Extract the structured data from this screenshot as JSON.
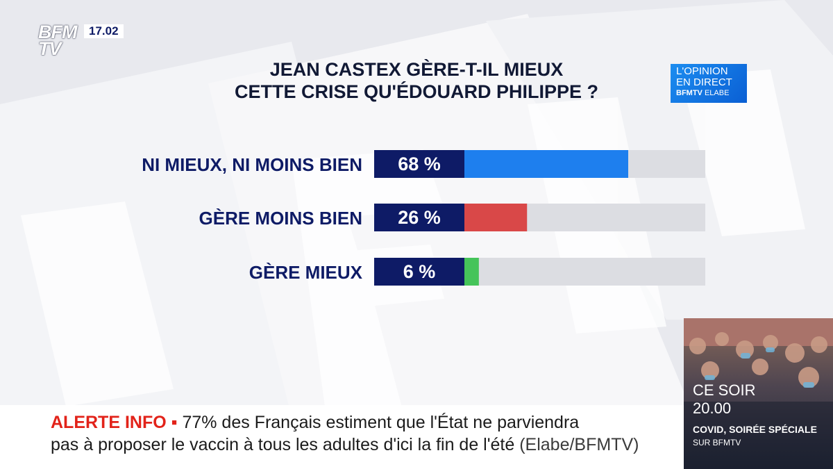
{
  "header": {
    "logo_top": "BFM",
    "logo_bottom": "TV",
    "clock": "17.02"
  },
  "title_lines": [
    "JEAN CASTEX GÈRE-T-IL MIEUX",
    "CETTE CRISE QU'ÉDOUARD PHILIPPE ?"
  ],
  "opinion_box": {
    "line1": "L'OPINION",
    "line2": "EN DIRECT",
    "brand": "BFMTV",
    "partner": "ELABE"
  },
  "chart_data": {
    "type": "bar",
    "orientation": "horizontal",
    "title": "JEAN CASTEX GÈRE-T-IL MIEUX CETTE CRISE QU'ÉDOUARD PHILIPPE ?",
    "categories": [
      "NI MIEUX, NI MOINS BIEN",
      "GÈRE MOINS BIEN",
      "GÈRE MIEUX"
    ],
    "values": [
      68,
      26,
      6
    ],
    "value_labels": [
      "68 %",
      "26 %",
      "6 %"
    ],
    "colors": [
      "#1e7fee",
      "#d94848",
      "#45c45a"
    ],
    "xlim": [
      0,
      100
    ],
    "unit": "%",
    "grid": false,
    "legend": "none"
  },
  "promo": {
    "line1": "CE SOIR",
    "time": "20.00",
    "show": "COVID, SOIRÉE SPÉCIALE",
    "channel": "SUR BFMTV"
  },
  "ticker": {
    "alert_label": "ALERTE INFO",
    "line1": "77% des Français estiment que l'État ne parviendra",
    "line2": "pas à proposer le vaccin à tous les adultes d'ici la fin de l'été",
    "source": "(Elabe/BFMTV)"
  },
  "colors": {
    "navy": "#0e1b66",
    "track": "#dcdde2",
    "alert": "#e2231a"
  }
}
